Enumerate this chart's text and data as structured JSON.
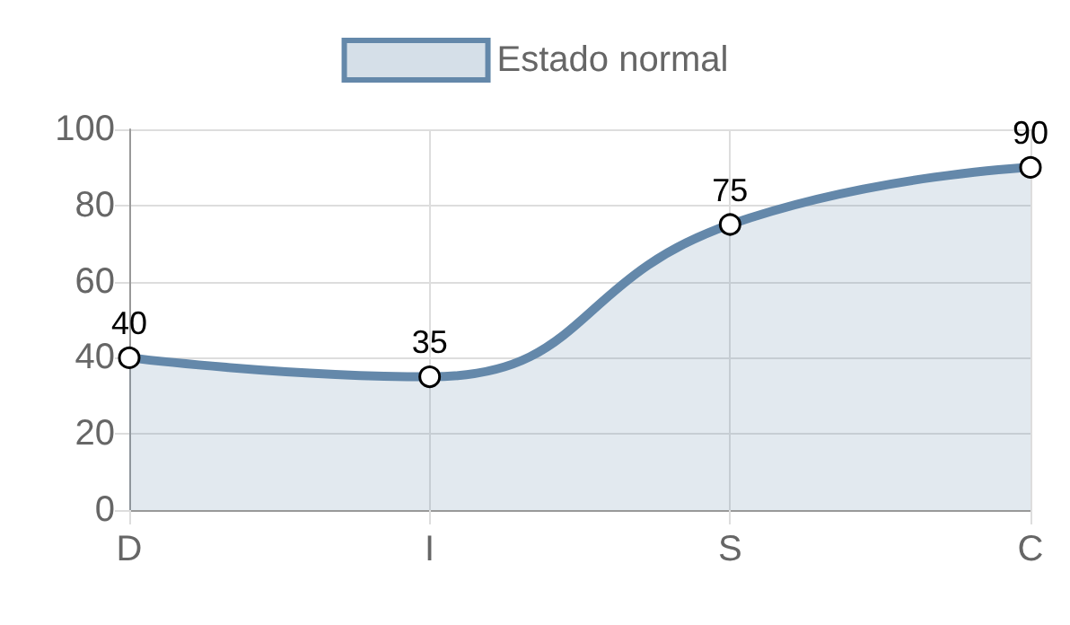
{
  "chart_data": {
    "type": "area",
    "categories": [
      "D",
      "I",
      "S",
      "C"
    ],
    "series": [
      {
        "name": "Estado normal",
        "color": "#6488aa",
        "values": [
          40,
          35,
          75,
          90
        ]
      }
    ],
    "ylim": [
      0,
      100
    ],
    "yticks": [
      0,
      20,
      40,
      60,
      80,
      100
    ],
    "grid": true,
    "legend": "top",
    "marker": "circle",
    "line_style": "solid",
    "data_labels": true
  }
}
